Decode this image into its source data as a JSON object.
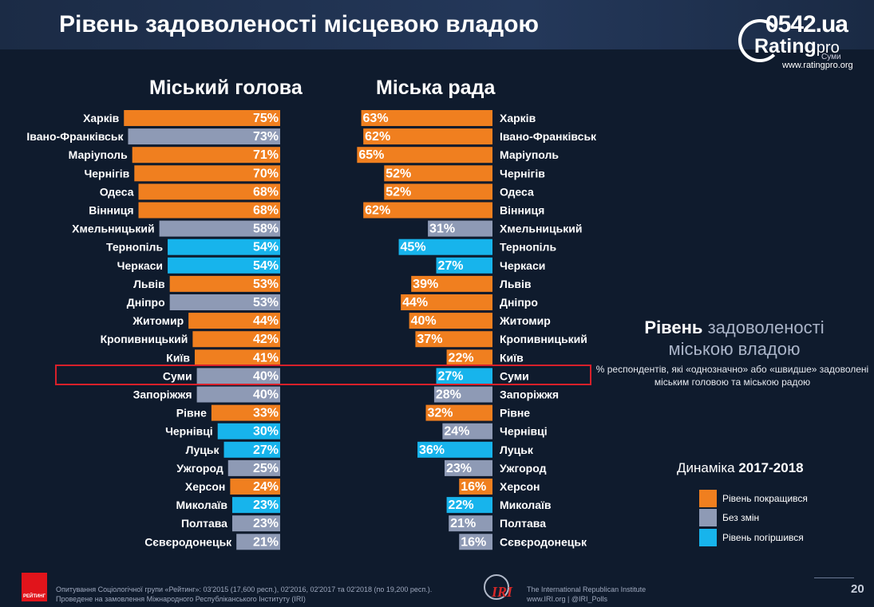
{
  "header": {
    "title": "Рівень задоволеності місцевою владою"
  },
  "logo": {
    "number": "0542.ua",
    "brand": "Rating",
    "brand_suffix": "pro",
    "city": "Суми",
    "url": "www.ratingpro.org"
  },
  "colors": {
    "improved": "#f07f1f",
    "no_change": "#8e9ab5",
    "worsened": "#17b4ec"
  },
  "chart_data": {
    "type": "bar",
    "panels": [
      {
        "title": "Міський голова"
      },
      {
        "title": "Міська рада"
      }
    ],
    "categories": [
      "Харків",
      "Івано-Франківськ",
      "Маріуполь",
      "Чернігів",
      "Одеса",
      "Вінниця",
      "Хмельницький",
      "Тернопіль",
      "Черкаси",
      "Львів",
      "Дніпро",
      "Житомир",
      "Кропивницький",
      "Київ",
      "Суми",
      "Запоріжжя",
      "Рівне",
      "Чернівці",
      "Луцьк",
      "Ужгород",
      "Херсон",
      "Миколаїв",
      "Полтава",
      "Сєвєродонецьк"
    ],
    "series": [
      {
        "name": "Міський голова",
        "values": [
          75,
          73,
          71,
          70,
          68,
          68,
          58,
          54,
          54,
          53,
          53,
          44,
          42,
          41,
          40,
          40,
          33,
          30,
          27,
          25,
          24,
          23,
          23,
          21
        ],
        "labels": [
          "75%",
          "73%",
          "71%",
          "70%",
          "68%",
          "68%",
          "58%",
          "54%",
          "54%",
          "53%",
          "53%",
          "44%",
          "42%",
          "41%",
          "40%",
          "40%",
          "33%",
          "30%",
          "27%",
          "25%",
          "24%",
          "23%",
          "23%",
          "21%"
        ],
        "dynamics": [
          "improved",
          "no_change",
          "improved",
          "improved",
          "improved",
          "improved",
          "no_change",
          "worsened",
          "worsened",
          "improved",
          "no_change",
          "improved",
          "improved",
          "improved",
          "no_change",
          "no_change",
          "improved",
          "worsened",
          "worsened",
          "no_change",
          "improved",
          "worsened",
          "no_change",
          "no_change"
        ]
      },
      {
        "name": "Міська рада",
        "values": [
          63,
          62,
          65,
          52,
          52,
          62,
          31,
          45,
          27,
          39,
          44,
          40,
          37,
          22,
          27,
          28,
          32,
          24,
          36,
          23,
          16,
          22,
          21,
          16
        ],
        "labels": [
          "63%",
          "62%",
          "65%",
          "52%",
          "52%",
          "62%",
          "31%",
          "45%",
          "27%",
          "39%",
          "44%",
          "40%",
          "37%",
          "22%",
          "27%",
          "28%",
          "32%",
          "24%",
          "36%",
          "23%",
          "16%",
          "22%",
          "21%",
          "16%"
        ],
        "dynamics": [
          "improved",
          "improved",
          "improved",
          "improved",
          "improved",
          "improved",
          "no_change",
          "worsened",
          "worsened",
          "improved",
          "improved",
          "improved",
          "improved",
          "improved",
          "worsened",
          "no_change",
          "improved",
          "no_change",
          "worsened",
          "no_change",
          "improved",
          "worsened",
          "no_change",
          "no_change"
        ]
      }
    ],
    "highlighted_category": "Суми"
  },
  "legend": {
    "title_bold": "Рівень",
    "title_rest": " задоволеності міською владою",
    "subtitle": "% респондентів, які «однозначно» або «швидше» задоволені міським головою та міською радою",
    "dynamics_title": "Динаміка ",
    "dynamics_years": "2017-2018",
    "items": [
      {
        "key": "improved",
        "label": "Рівень покращився"
      },
      {
        "key": "no_change",
        "label": "Без змін"
      },
      {
        "key": "worsened",
        "label": "Рівень погіршився"
      }
    ]
  },
  "footer": {
    "rating_logo": "РЕЙТИНГ",
    "note_line1": "Опитування Соціологічної групи «Рейтинг»: 03'2015 (17,600 респ.), 02'2016, 02'2017 та 02'2018 (по 19,200 респ.).",
    "note_line2": "Проведене на замовлення Міжнародного Республіканського Інституту (IRI)",
    "iri_logo": "IRI",
    "iri_line1": "The International Republican Institute",
    "iri_line2": "www.IRI.org | @IRI_Polls",
    "page": "20"
  }
}
